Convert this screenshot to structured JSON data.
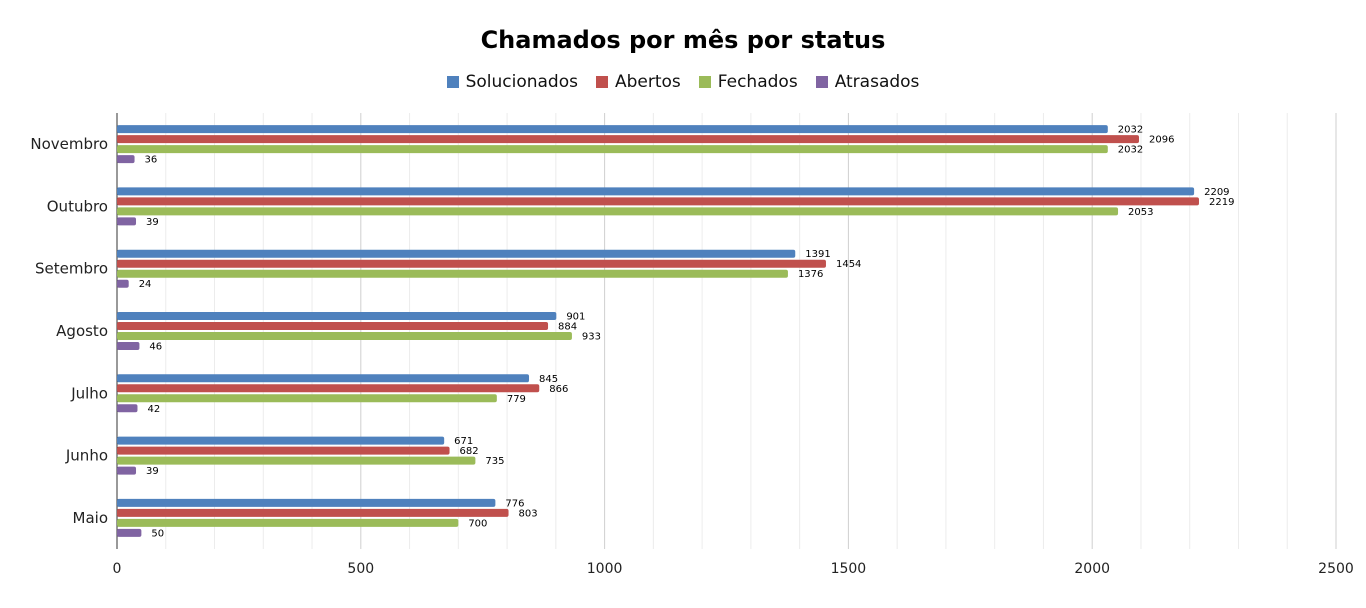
{
  "chart_data": {
    "type": "bar",
    "orientation": "horizontal",
    "title": "Chamados por mês por status",
    "xlabel": "",
    "ylabel": "",
    "xlim": [
      0,
      2500
    ],
    "x_ticks": [
      0,
      500,
      1000,
      1500,
      2000,
      2500
    ],
    "grid": true,
    "legend_position": "top",
    "categories": [
      "Novembro",
      "Outubro",
      "Setembro",
      "Agosto",
      "Julho",
      "Junho",
      "Maio"
    ],
    "series": [
      {
        "name": "Solucionados",
        "color": "#4f81bd",
        "values": [
          2032,
          2209,
          1391,
          901,
          845,
          671,
          776
        ]
      },
      {
        "name": "Abertos",
        "color": "#c0504d",
        "values": [
          2096,
          2219,
          1454,
          884,
          866,
          682,
          803
        ]
      },
      {
        "name": "Fechados",
        "color": "#9bbb59",
        "values": [
          2032,
          2053,
          1376,
          933,
          779,
          735,
          700
        ]
      },
      {
        "name": "Atrasados",
        "color": "#8064a2",
        "values": [
          36,
          39,
          24,
          46,
          42,
          39,
          50
        ]
      }
    ]
  }
}
